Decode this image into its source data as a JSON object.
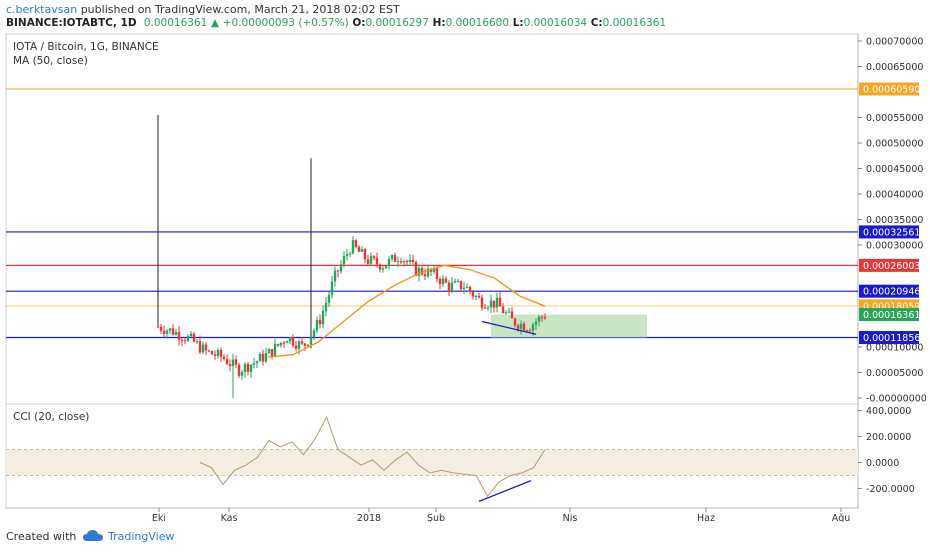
{
  "header": {
    "user": "c.berktavsan",
    "published": "published on TradingView.com, March 21, 2018 02:02 EST",
    "symbol": "BINANCE:IOTABTC, 1D",
    "last": "0.00016361",
    "change": "+0.00000093 (+0.57%)",
    "o_label": "O:",
    "o": "0.00016297",
    "h_label": "H:",
    "h": "0.00016600",
    "l_label": "L:",
    "l": "0.00016034",
    "c_label": "C:",
    "c": "0.00016361"
  },
  "footer": {
    "created": "Created with",
    "brand": "TradingView"
  },
  "colors": {
    "up": "#26a65b",
    "down": "#e53935",
    "ma": "#f7941d",
    "blue_line": "#1a1acc",
    "red_line": "#e53935",
    "orange_line": "#f7a623",
    "target_box": "#b5deb0",
    "cci_line": "#b39b6b",
    "cci_band": "#f3ede2"
  },
  "chart_data": [
    {
      "type": "line",
      "title": "IOTA / Bitcoin, 1G, BINANCE",
      "indicator": "MA (50, close)",
      "y_ticks": [
        "0.00070000",
        "0.00065000",
        "0.00055000",
        "0.00050000",
        "0.00045000",
        "0.00040000",
        "0.00035000",
        "0.00030000",
        "0.00010000",
        "0.00005000",
        "-0.00000000"
      ],
      "ylim": [
        -1e-06,
        0.00072
      ],
      "x_ticks": [
        "Eki",
        "Kas",
        "2018",
        "Şub",
        "Nis",
        "Haz",
        "Ağu"
      ],
      "horizontal_levels": [
        {
          "label": "0.00060590",
          "value": 0.0006059,
          "color": "orange"
        },
        {
          "label": "0.00032561",
          "value": 0.00032561,
          "color": "blue"
        },
        {
          "label": "0.00026003",
          "value": 0.00026003,
          "color": "red"
        },
        {
          "label": "0.00020946",
          "value": 0.00020946,
          "color": "blue"
        },
        {
          "label": "0.00018059",
          "value": 0.00018059,
          "color": "orange"
        },
        {
          "label": "0.00016361",
          "value": 0.00016361,
          "color": "green"
        },
        {
          "label": "0.00011856",
          "value": 0.00011856,
          "color": "blue"
        }
      ],
      "price_path": [
        [
          "Eki",
          0.00014
        ],
        [
          "",
          0.00013
        ],
        [
          "",
          0.000115
        ],
        [
          "",
          9e-05
        ],
        [
          "Kas",
          8e-05
        ],
        [
          "",
          5.5e-05
        ],
        [
          "",
          7e-05
        ],
        [
          "",
          9e-05
        ],
        [
          "",
          0.00012
        ],
        [
          "",
          0.0001
        ],
        [
          "",
          0.00015
        ],
        [
          "",
          0.00024
        ],
        [
          "",
          0.0003
        ],
        [
          "",
          0.00027
        ],
        [
          "",
          0.00026
        ],
        [
          "2018",
          0.00028
        ],
        [
          "",
          0.00025
        ],
        [
          "",
          0.000245
        ],
        [
          "Şub",
          0.00022
        ],
        [
          "",
          0.00022
        ],
        [
          "",
          0.00019
        ],
        [
          "",
          0.000185
        ],
        [
          "",
          0.00015
        ],
        [
          "",
          0.00014
        ],
        [
          "Nis",
          0.000164
        ]
      ],
      "ma_path": [
        8e-05,
        8.5e-05,
        0.00011,
        0.00015,
        0.00019,
        0.00022,
        0.000245,
        0.00026,
        0.000252,
        0.000235,
        0.0002,
        0.00018
      ]
    },
    {
      "type": "line",
      "title": "CCI (20, close)",
      "y_ticks": [
        "400.0000",
        "200.0000",
        "0.0000",
        "-200.0000"
      ],
      "ylim": [
        -320,
        420
      ],
      "band": [
        -100,
        100
      ],
      "values": [
        0,
        -40,
        -170,
        -60,
        -20,
        40,
        170,
        120,
        160,
        60,
        180,
        350,
        100,
        40,
        -20,
        20,
        -60,
        20,
        80,
        -20,
        -80,
        -60,
        -80,
        -90,
        -100,
        -260,
        -150,
        -100,
        -80,
        -40,
        100
      ]
    }
  ]
}
